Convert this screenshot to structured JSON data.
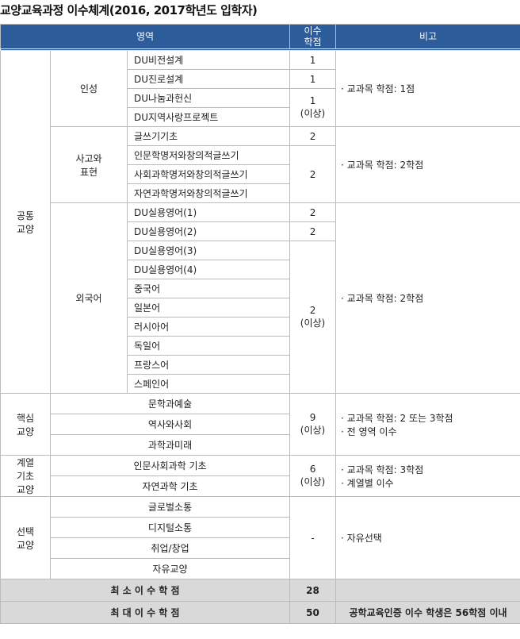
{
  "title": "교양교육과정 이수체계(2016, 2017학년도 입학자)",
  "header": {
    "area": "영역",
    "credits": "이수\n학점",
    "note": "비고"
  },
  "common": {
    "label": "공통\n교양",
    "insung": {
      "label": "인성",
      "items": [
        "DU비전설계",
        "DU진로설계",
        "DU나눔과헌신",
        "DU지역사랑프로젝트"
      ],
      "credits": [
        "1",
        "1",
        "1\n(이상)"
      ],
      "note": "· 교과목 학점: 1점"
    },
    "sago": {
      "label": "사고와\n표현",
      "items": [
        "글쓰기기초",
        "인문학명저와창의적글쓰기",
        "사회과학명저와창의적글쓰기",
        "자연과학명저와창의적글쓰기"
      ],
      "credits": [
        "2",
        "2"
      ],
      "note": "· 교과목 학점: 2학점"
    },
    "foreign": {
      "label": "외국어",
      "items": [
        "DU실용영어(1)",
        "DU실용영어(2)",
        "DU실용영어(3)",
        "DU실용영어(4)",
        "중국어",
        "일본어",
        "러시아어",
        "독일어",
        "프랑스어",
        "스페인어"
      ],
      "credits": [
        "2",
        "2",
        "2\n(이상)"
      ],
      "note": "· 교과목 학점: 2학점"
    }
  },
  "core": {
    "label": "핵심\n교양",
    "items": [
      "문학과예술",
      "역사와사회",
      "과학과미래"
    ],
    "credits": "9\n(이상)",
    "note": "· 교과목 학점: 2 또는 3학점\n· 전 영역 이수"
  },
  "basic": {
    "label": "계열\n기초\n교양",
    "items": [
      "인문사회과학 기초",
      "자연과학 기초"
    ],
    "credits": "6\n(이상)",
    "note": "· 교과목 학점: 3학점\n· 계열별 이수"
  },
  "elective": {
    "label": "선택\n교양",
    "items": [
      "글로벌소통",
      "디지털소통",
      "취업/창업",
      "자유교양"
    ],
    "credits": "-",
    "note": "· 자유선택"
  },
  "totals": [
    {
      "label": "최 소 이 수 학 점",
      "value": "28",
      "note": ""
    },
    {
      "label": "최 대 이 수 학 점",
      "value": "50",
      "note": "공학교육인증 이수 학생은 56학점 이내"
    }
  ]
}
